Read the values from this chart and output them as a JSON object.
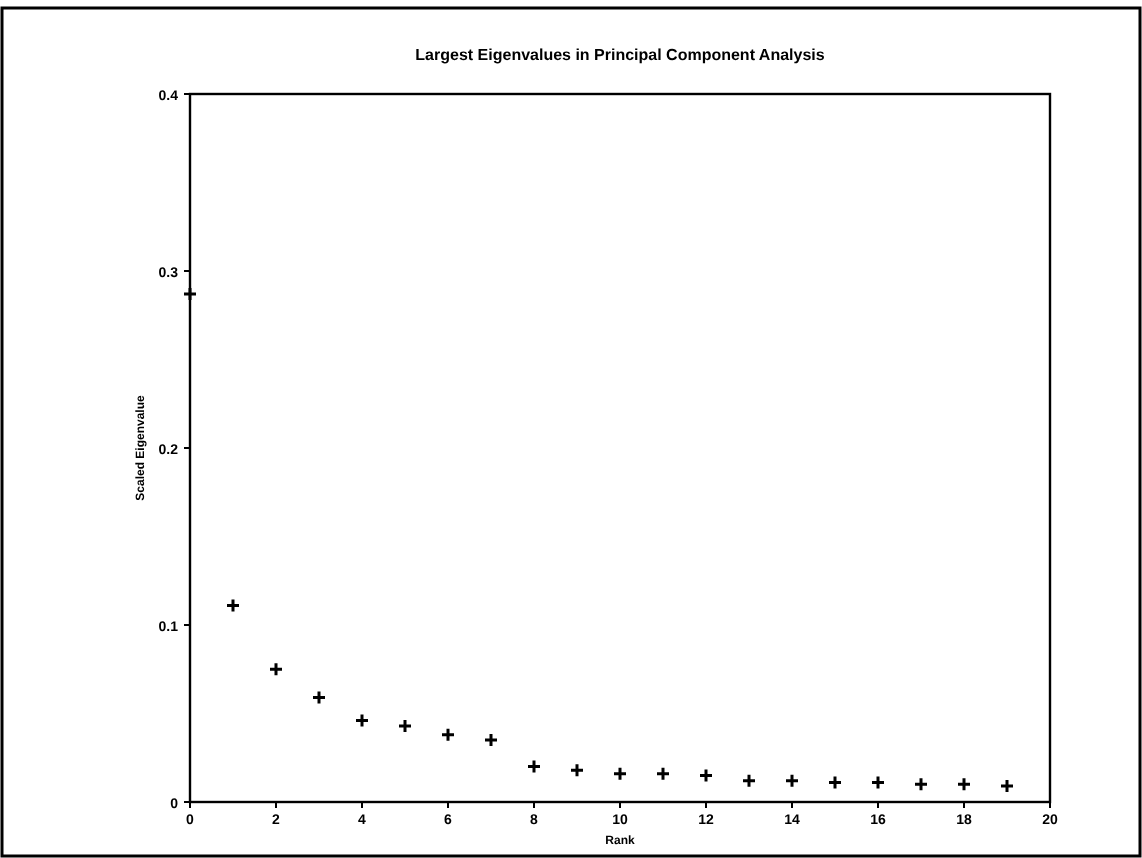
{
  "chart_data": {
    "type": "scatter",
    "title": "Largest Eigenvalues in Principal Component Analysis",
    "xlabel": "Rank",
    "ylabel": "Scaled Eigenvalue",
    "x": [
      0,
      1,
      2,
      3,
      4,
      5,
      6,
      7,
      8,
      9,
      10,
      11,
      12,
      13,
      14,
      15,
      16,
      17,
      18,
      19
    ],
    "series": [
      {
        "color": "#000000",
        "values": [
          0.287,
          0.111,
          0.075,
          0.059,
          0.046,
          0.043,
          0.038,
          0.035,
          0.02,
          0.018,
          0.016,
          0.016,
          0.015,
          0.012,
          0.012,
          0.011,
          0.011,
          0.01,
          0.01,
          0.009
        ]
      }
    ],
    "xlim": [
      0,
      20
    ],
    "xticks": [
      0,
      2,
      4,
      6,
      8,
      10,
      12,
      14,
      16,
      18,
      20
    ],
    "ylim": [
      0,
      0.4
    ],
    "yticks": [
      0,
      0.1,
      0.2,
      0.3,
      0.4
    ],
    "grid": false,
    "marker": "cross"
  }
}
